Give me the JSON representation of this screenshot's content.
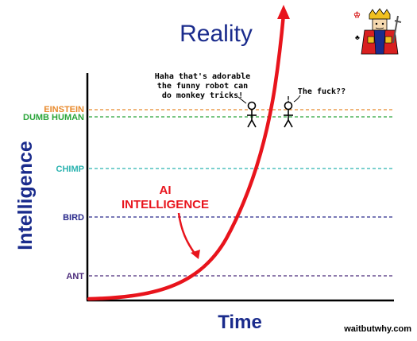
{
  "title": "Reality",
  "axes": {
    "x_label": "Time",
    "y_label": "Intelligence"
  },
  "levels": [
    {
      "id": "einstein",
      "label": "EINSTEIN",
      "color": "#e8892b"
    },
    {
      "id": "dumb-human",
      "label": "DUMB HUMAN",
      "color": "#2aa53a"
    },
    {
      "id": "chimp",
      "label": "CHIMP",
      "color": "#2bb3b0"
    },
    {
      "id": "bird",
      "label": "BIRD",
      "color": "#2a2a8c"
    },
    {
      "id": "ant",
      "label": "ANT",
      "color": "#4a2a7a"
    }
  ],
  "curve": {
    "label_line1": "AI",
    "label_line2": "INTELLIGENCE",
    "color": "#e8141c"
  },
  "speech": {
    "einstein_line1": "Haha that's adorable",
    "einstein_line2": "the funny robot can",
    "einstein_line3": "do monkey tricks!",
    "human_exclaim": "!",
    "human_line": "The fuck??"
  },
  "credit": "waitbutwhy.com",
  "colors": {
    "title": "#1a2b8c",
    "axis_label": "#1a2b8c",
    "axis": "#000000",
    "stick_figure": "#000000"
  },
  "icons": {
    "corner_art": "king-card-icon"
  }
}
